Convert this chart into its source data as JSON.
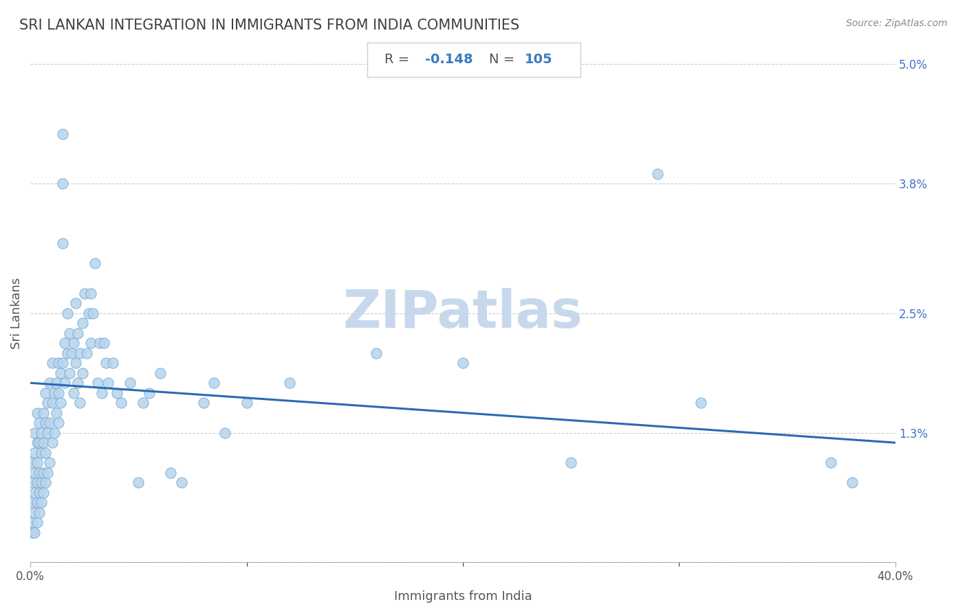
{
  "title": "SRI LANKAN INTEGRATION IN IMMIGRANTS FROM INDIA COMMUNITIES",
  "source": "Source: ZipAtlas.com",
  "xlabel": "Immigrants from India",
  "ylabel": "Sri Lankans",
  "R": -0.148,
  "N": 105,
  "xlim": [
    0.0,
    0.4
  ],
  "ylim": [
    0.0,
    0.05
  ],
  "xticks": [
    0.0,
    0.4
  ],
  "xticklabels": [
    "0.0%",
    "40.0%"
  ],
  "yticks": [
    0.0,
    0.013,
    0.025,
    0.038,
    0.05
  ],
  "yticklabels": [
    "",
    "1.3%",
    "2.5%",
    "3.8%",
    "5.0%"
  ],
  "scatter_color": "#b8d4ec",
  "scatter_edgecolor": "#7aaed4",
  "scatter_alpha": 0.85,
  "scatter_size": 120,
  "line_color": "#2a6ab5",
  "line_width": 2.2,
  "grid_color": "#cccccc",
  "watermark": "ZIPatlas",
  "watermark_color": "#c8d8ec",
  "title_color": "#404040",
  "title_fontsize": 15,
  "annotation_color_label": "#555555",
  "annotation_color_value": "#3a7abf",
  "line_start_y": 0.018,
  "line_end_y": 0.012,
  "points": [
    [
      0.001,
      0.004
    ],
    [
      0.001,
      0.003
    ],
    [
      0.001,
      0.006
    ],
    [
      0.001,
      0.008
    ],
    [
      0.001,
      0.01
    ],
    [
      0.002,
      0.003
    ],
    [
      0.002,
      0.005
    ],
    [
      0.002,
      0.007
    ],
    [
      0.002,
      0.009
    ],
    [
      0.002,
      0.011
    ],
    [
      0.002,
      0.013
    ],
    [
      0.003,
      0.004
    ],
    [
      0.003,
      0.006
    ],
    [
      0.003,
      0.008
    ],
    [
      0.003,
      0.01
    ],
    [
      0.003,
      0.012
    ],
    [
      0.003,
      0.015
    ],
    [
      0.004,
      0.005
    ],
    [
      0.004,
      0.007
    ],
    [
      0.004,
      0.009
    ],
    [
      0.004,
      0.012
    ],
    [
      0.004,
      0.014
    ],
    [
      0.005,
      0.006
    ],
    [
      0.005,
      0.008
    ],
    [
      0.005,
      0.011
    ],
    [
      0.005,
      0.013
    ],
    [
      0.006,
      0.007
    ],
    [
      0.006,
      0.009
    ],
    [
      0.006,
      0.012
    ],
    [
      0.006,
      0.015
    ],
    [
      0.007,
      0.008
    ],
    [
      0.007,
      0.011
    ],
    [
      0.007,
      0.014
    ],
    [
      0.007,
      0.017
    ],
    [
      0.008,
      0.009
    ],
    [
      0.008,
      0.013
    ],
    [
      0.008,
      0.016
    ],
    [
      0.009,
      0.01
    ],
    [
      0.009,
      0.014
    ],
    [
      0.009,
      0.018
    ],
    [
      0.01,
      0.012
    ],
    [
      0.01,
      0.016
    ],
    [
      0.01,
      0.02
    ],
    [
      0.011,
      0.013
    ],
    [
      0.011,
      0.017
    ],
    [
      0.012,
      0.015
    ],
    [
      0.012,
      0.018
    ],
    [
      0.013,
      0.014
    ],
    [
      0.013,
      0.017
    ],
    [
      0.013,
      0.02
    ],
    [
      0.014,
      0.016
    ],
    [
      0.014,
      0.019
    ],
    [
      0.015,
      0.043
    ],
    [
      0.015,
      0.038
    ],
    [
      0.015,
      0.032
    ],
    [
      0.015,
      0.02
    ],
    [
      0.016,
      0.018
    ],
    [
      0.016,
      0.022
    ],
    [
      0.017,
      0.021
    ],
    [
      0.017,
      0.025
    ],
    [
      0.018,
      0.019
    ],
    [
      0.018,
      0.023
    ],
    [
      0.019,
      0.021
    ],
    [
      0.02,
      0.017
    ],
    [
      0.02,
      0.022
    ],
    [
      0.021,
      0.02
    ],
    [
      0.021,
      0.026
    ],
    [
      0.022,
      0.018
    ],
    [
      0.022,
      0.023
    ],
    [
      0.023,
      0.016
    ],
    [
      0.023,
      0.021
    ],
    [
      0.024,
      0.019
    ],
    [
      0.024,
      0.024
    ],
    [
      0.025,
      0.027
    ],
    [
      0.026,
      0.021
    ],
    [
      0.027,
      0.025
    ],
    [
      0.028,
      0.022
    ],
    [
      0.028,
      0.027
    ],
    [
      0.029,
      0.025
    ],
    [
      0.03,
      0.03
    ],
    [
      0.031,
      0.018
    ],
    [
      0.032,
      0.022
    ],
    [
      0.033,
      0.017
    ],
    [
      0.034,
      0.022
    ],
    [
      0.035,
      0.02
    ],
    [
      0.036,
      0.018
    ],
    [
      0.038,
      0.02
    ],
    [
      0.04,
      0.017
    ],
    [
      0.042,
      0.016
    ],
    [
      0.046,
      0.018
    ],
    [
      0.05,
      0.008
    ],
    [
      0.052,
      0.016
    ],
    [
      0.055,
      0.017
    ],
    [
      0.06,
      0.019
    ],
    [
      0.065,
      0.009
    ],
    [
      0.07,
      0.008
    ],
    [
      0.08,
      0.016
    ],
    [
      0.085,
      0.018
    ],
    [
      0.09,
      0.013
    ],
    [
      0.1,
      0.016
    ],
    [
      0.12,
      0.018
    ],
    [
      0.16,
      0.021
    ],
    [
      0.2,
      0.02
    ],
    [
      0.25,
      0.01
    ],
    [
      0.29,
      0.039
    ],
    [
      0.31,
      0.016
    ],
    [
      0.37,
      0.01
    ],
    [
      0.38,
      0.008
    ]
  ]
}
